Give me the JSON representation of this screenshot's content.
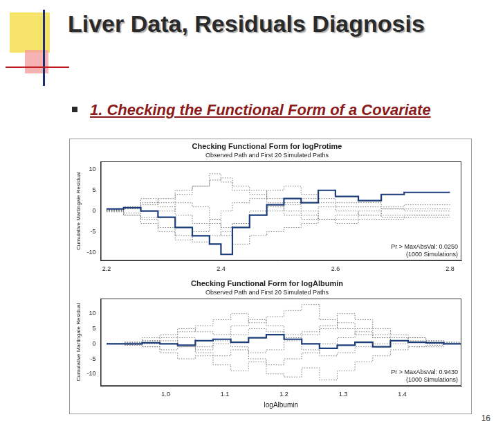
{
  "slide": {
    "title": "Liver Data, Residuals Diagnosis",
    "bullet": "1. Checking the Functional Form of a Covariate",
    "page_number": "16"
  },
  "chart_data": [
    {
      "type": "step",
      "title": "Checking Functional Form for logProtime",
      "subtitle": "Observed Path and First 20 Simulated Paths",
      "y_label": "Cumulative Martingale Residual",
      "x": [
        2.2,
        2.23,
        2.26,
        2.29,
        2.32,
        2.35,
        2.38,
        2.4,
        2.42,
        2.45,
        2.48,
        2.51,
        2.54,
        2.57,
        2.6,
        2.64,
        2.68,
        2.72,
        2.76,
        2.8
      ],
      "series": [
        {
          "color": "#1c3d7a",
          "line_style": "solid",
          "values": [
            0.5,
            0.8,
            0,
            -1.5,
            -4,
            -6,
            -8,
            -10.5,
            -4,
            -1,
            1.5,
            3,
            2,
            5,
            3.5,
            2.5,
            4,
            4.5,
            4.5,
            4.5
          ]
        },
        {
          "color": "#6e6e6e",
          "line_style": "dotted",
          "values": [
            0.3,
            0.5,
            1.5,
            3,
            5,
            6,
            7.5,
            8,
            5,
            4,
            2,
            0,
            -1,
            -2,
            -1,
            0,
            -1.5,
            -1,
            -1,
            -1
          ]
        },
        {
          "color": "#6e6e6e",
          "line_style": "dotted",
          "values": [
            0,
            -0.5,
            -2,
            -4,
            -6,
            -7.5,
            -6,
            -5,
            -3,
            -1,
            0,
            1.5,
            3,
            2,
            1,
            1,
            0.5,
            0,
            0,
            0
          ]
        },
        {
          "color": "#6e6e6e",
          "line_style": "dotted",
          "values": [
            0.2,
            1,
            3,
            2,
            4,
            6,
            9,
            7,
            6,
            5,
            3,
            2,
            0,
            -2,
            -3,
            -2,
            -2,
            -1.5,
            -1.5,
            -1.5
          ]
        },
        {
          "color": "#6e6e6e",
          "line_style": "dotted",
          "values": [
            -0.2,
            -1,
            -3,
            -5,
            -7,
            -5,
            -3,
            -6,
            -8,
            -6,
            -5,
            -4,
            -3,
            -2,
            -2,
            -1,
            -1,
            -1,
            -1,
            -1
          ]
        },
        {
          "color": "#6e6e6e",
          "line_style": "dotted",
          "values": [
            0.1,
            0.8,
            2,
            1,
            -1,
            -3,
            -2,
            0,
            2,
            3,
            5,
            6,
            4,
            3,
            2,
            2,
            1,
            1.5,
            1.5,
            1.5
          ]
        },
        {
          "color": "#6e6e6e",
          "line_style": "dotted",
          "values": [
            0,
            -1,
            -1.5,
            0,
            2,
            1,
            -2,
            -4,
            -3,
            0,
            1,
            -1,
            -2,
            1,
            0,
            -1,
            0.5,
            0.5,
            0.5,
            0.5
          ]
        }
      ],
      "xlim": [
        2.19,
        2.82
      ],
      "ylim": [
        -12,
        12
      ],
      "xticks": [
        2.2,
        2.4,
        2.6,
        2.8
      ],
      "yticks": [
        -10,
        -5,
        0,
        5,
        10
      ],
      "grid": false,
      "annotations": [
        "Pr > MaxAbsVal: 0.0250",
        "(1000 Simulations)"
      ]
    },
    {
      "type": "step",
      "title": "Checking Functional Form for logAlbumin",
      "subtitle": "Observed Path and First 20 Simulated Paths",
      "y_label": "Cumulative Martingale Residual",
      "x_label": "logAlbumin",
      "x": [
        0.9,
        0.93,
        0.96,
        0.99,
        1.02,
        1.05,
        1.08,
        1.11,
        1.14,
        1.17,
        1.2,
        1.23,
        1.26,
        1.29,
        1.32,
        1.35,
        1.38,
        1.41,
        1.44,
        1.47,
        1.5
      ],
      "series": [
        {
          "color": "#1c3d7a",
          "line_style": "solid",
          "values": [
            0,
            0,
            0.3,
            0,
            -0.5,
            1,
            1.5,
            0.5,
            2,
            3,
            1.5,
            0,
            -1.5,
            -0.5,
            0.5,
            -1,
            1,
            0.5,
            0.3,
            0,
            0
          ]
        },
        {
          "color": "#6e6e6e",
          "line_style": "dotted",
          "values": [
            0,
            0.5,
            1,
            2,
            4,
            6,
            8,
            10,
            7,
            9,
            11,
            13,
            8,
            5,
            3,
            2,
            1,
            0.5,
            0,
            0,
            0
          ]
        },
        {
          "color": "#6e6e6e",
          "line_style": "dotted",
          "values": [
            0,
            -0.5,
            -1,
            -3,
            -5,
            -4,
            -7,
            -9,
            -6,
            -10,
            -11,
            -8,
            -12,
            -9,
            -6,
            -4,
            -2,
            -1,
            -0.5,
            0,
            0
          ]
        },
        {
          "color": "#6e6e6e",
          "line_style": "dotted",
          "values": [
            0,
            0.3,
            1,
            0,
            2,
            -1,
            1,
            3,
            5,
            4,
            2,
            -2,
            -4,
            -3,
            -1,
            0,
            1,
            2,
            1,
            0.5,
            0.5
          ]
        },
        {
          "color": "#6e6e6e",
          "line_style": "dotted",
          "values": [
            0,
            -0.3,
            -1,
            -2,
            -1,
            -3,
            -4,
            -2,
            -5,
            -7,
            -5,
            -3,
            0,
            2,
            4,
            3,
            2,
            1,
            0.5,
            0,
            0
          ]
        },
        {
          "color": "#6e6e6e",
          "line_style": "dotted",
          "values": [
            0,
            0.5,
            2,
            3,
            5,
            4,
            3,
            6,
            8,
            6,
            3,
            4,
            6,
            10,
            8,
            5,
            3,
            2,
            1,
            0.5,
            0.5
          ]
        },
        {
          "color": "#6e6e6e",
          "line_style": "dotted",
          "values": [
            0,
            -0.2,
            0,
            1,
            -1,
            -2,
            0,
            -1,
            -3,
            -2,
            1,
            3,
            5,
            7,
            5,
            2,
            0,
            -1,
            -1,
            0,
            0
          ]
        }
      ],
      "xlim": [
        0.89,
        1.5
      ],
      "ylim": [
        -14,
        15
      ],
      "xticks": [
        {
          "value": 1,
          "label": "1.0"
        },
        1.1,
        1.2,
        1.3,
        1.4
      ],
      "yticks": [
        -10,
        -5,
        0,
        5,
        10
      ],
      "grid": false,
      "annotations": [
        "Pr > MaxAbsVal: 0.9430",
        "(1000 Simulations)"
      ]
    }
  ]
}
